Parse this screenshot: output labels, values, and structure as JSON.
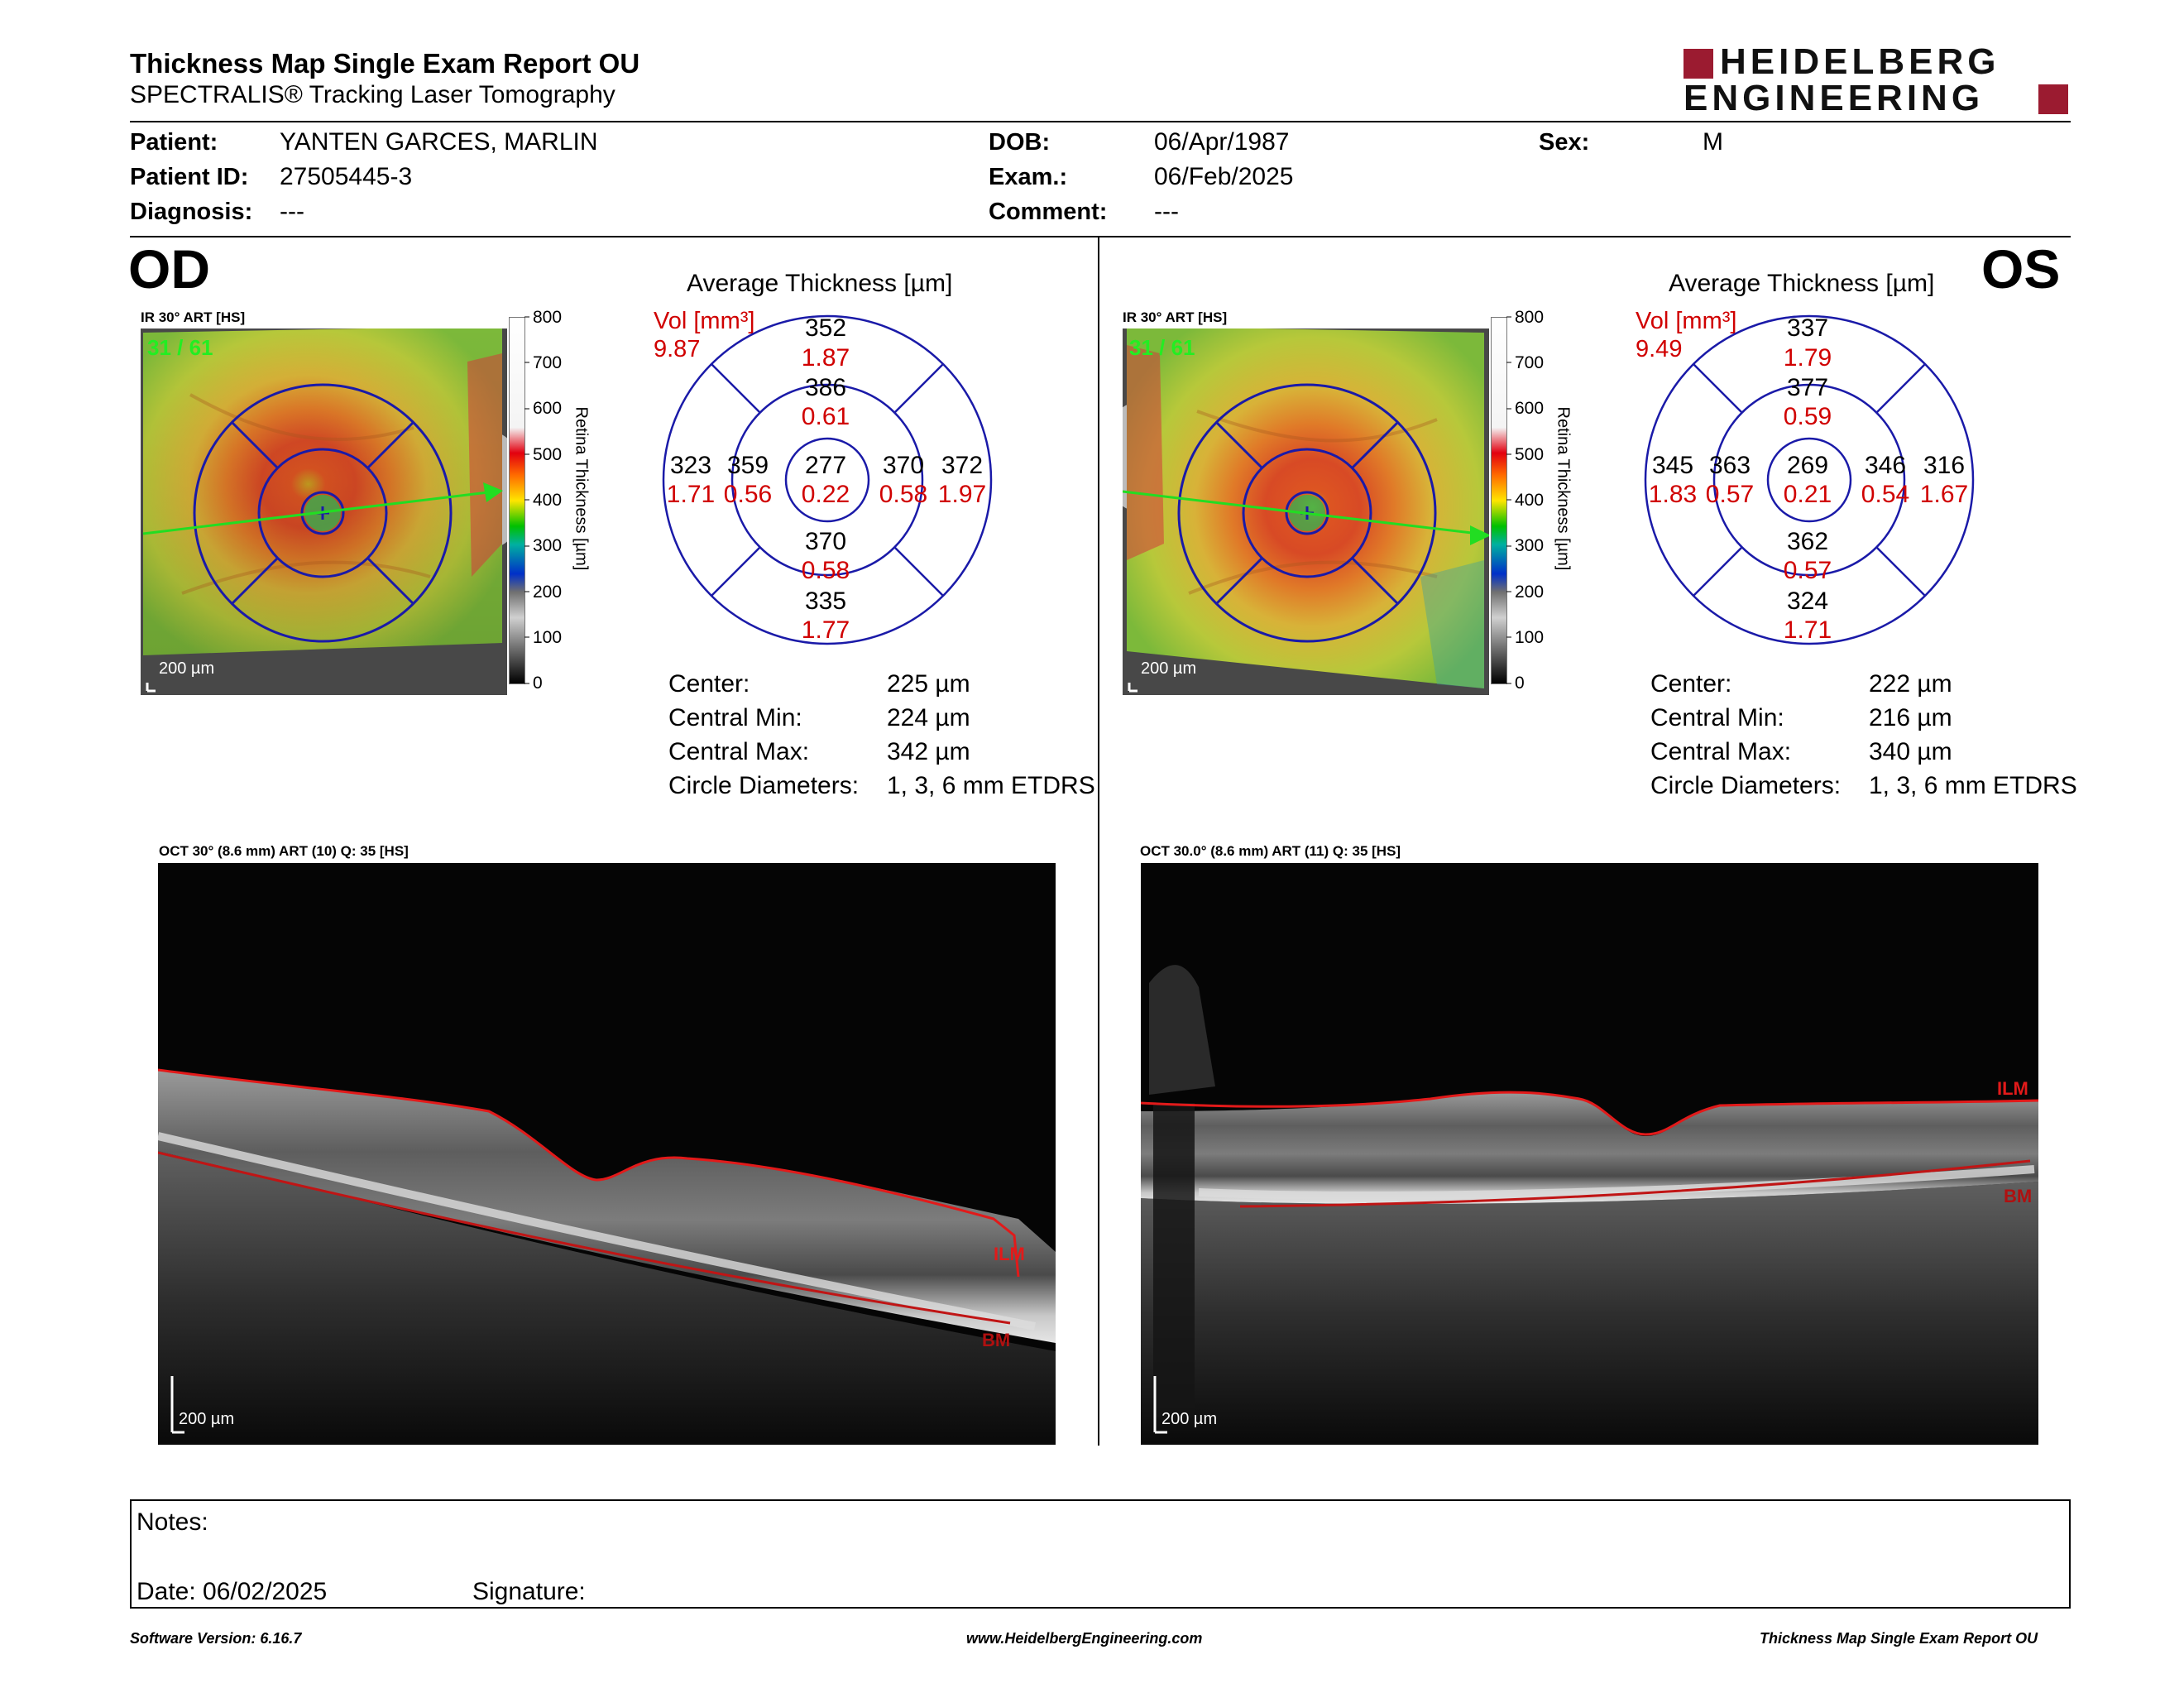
{
  "report": {
    "title": "Thickness Map Single Exam Report OU",
    "subtitle": "SPECTRALIS® Tracking Laser Tomography",
    "logo_line1": "HEIDELBERG",
    "logo_line2": "ENGINEERING"
  },
  "patient": {
    "patient_label": "Patient:",
    "patient_value": "YANTEN GARCES, MARLIN",
    "id_label": "Patient ID:",
    "id_value": "27505445-3",
    "diagnosis_label": "Diagnosis:",
    "diagnosis_value": "---",
    "dob_label": "DOB:",
    "dob_value": "06/Apr/1987",
    "exam_label": "Exam.:",
    "exam_value": "06/Feb/2025",
    "comment_label": "Comment:",
    "comment_value": "---",
    "sex_label": "Sex:",
    "sex_value": "M"
  },
  "colors": {
    "red": "#d00000",
    "blue": "#1a1aa8",
    "green_scan": "#22dd22",
    "brand": "#9b1b30"
  },
  "od": {
    "eye": "OD",
    "ir_label": "IR 30° ART [HS]",
    "frame_count": "31 / 61",
    "scale": "200 µm",
    "legend_ticks": [
      "800",
      "700",
      "600",
      "500",
      "400",
      "300",
      "200",
      "100",
      "0"
    ],
    "legend_title": "Retina Thickness [µm]",
    "avg_title": "Average Thickness [µm]",
    "vol_label": "Vol [mm³]",
    "vol_value": "9.87",
    "etdrs": {
      "outer_sup": "352",
      "outer_sup_vol": "1.87",
      "inner_sup": "386",
      "inner_sup_vol": "0.61",
      "outer_left": "323",
      "outer_left_vol": "1.71",
      "inner_left": "359",
      "inner_left_vol": "0.56",
      "center": "277",
      "center_vol": "0.22",
      "inner_right": "370",
      "inner_right_vol": "0.58",
      "outer_right": "372",
      "outer_right_vol": "1.97",
      "inner_inf": "370",
      "inner_inf_vol": "0.58",
      "outer_inf": "335",
      "outer_inf_vol": "1.77"
    },
    "stats": {
      "center_label": "Center:",
      "center_value": "225 µm",
      "min_label": "Central Min:",
      "min_value": "224 µm",
      "max_label": "Central Max:",
      "max_value": "342 µm",
      "diam_label": "Circle Diameters:",
      "diam_value": "1, 3, 6 mm ETDRS"
    },
    "oct_label": "OCT 30° (8.6 mm) ART (10) Q: 35 [HS]",
    "oct_scale": "200 µm",
    "ilm": "ILM",
    "bm": "BM"
  },
  "os": {
    "eye": "OS",
    "ir_label": "IR 30° ART [HS]",
    "frame_count": "31 / 61",
    "scale": "200 µm",
    "legend_ticks": [
      "800",
      "700",
      "600",
      "500",
      "400",
      "300",
      "200",
      "100",
      "0"
    ],
    "legend_title": "Retina Thickness [µm]",
    "avg_title": "Average Thickness [µm]",
    "vol_label": "Vol [mm³]",
    "vol_value": "9.49",
    "etdrs": {
      "outer_sup": "337",
      "outer_sup_vol": "1.79",
      "inner_sup": "377",
      "inner_sup_vol": "0.59",
      "outer_left": "345",
      "outer_left_vol": "1.83",
      "inner_left": "363",
      "inner_left_vol": "0.57",
      "center": "269",
      "center_vol": "0.21",
      "inner_right": "346",
      "inner_right_vol": "0.54",
      "outer_right": "316",
      "outer_right_vol": "1.67",
      "inner_inf": "362",
      "inner_inf_vol": "0.57",
      "outer_inf": "324",
      "outer_inf_vol": "1.71"
    },
    "stats": {
      "center_label": "Center:",
      "center_value": "222 µm",
      "min_label": "Central Min:",
      "min_value": "216 µm",
      "max_label": "Central Max:",
      "max_value": "340 µm",
      "diam_label": "Circle Diameters:",
      "diam_value": "1, 3, 6 mm ETDRS"
    },
    "oct_label": "OCT 30.0° (8.6 mm) ART (11) Q: 35 [HS]",
    "oct_scale": "200 µm",
    "ilm": "ILM",
    "bm": "BM"
  },
  "notes": {
    "notes_label": "Notes:",
    "date_label": "Date: 06/02/2025",
    "signature_label": "Signature:"
  },
  "footer": {
    "software": "Software Version: 6.16.7",
    "website": "www.HeidelbergEngineering.com",
    "report_name": "Thickness Map Single Exam Report OU"
  }
}
